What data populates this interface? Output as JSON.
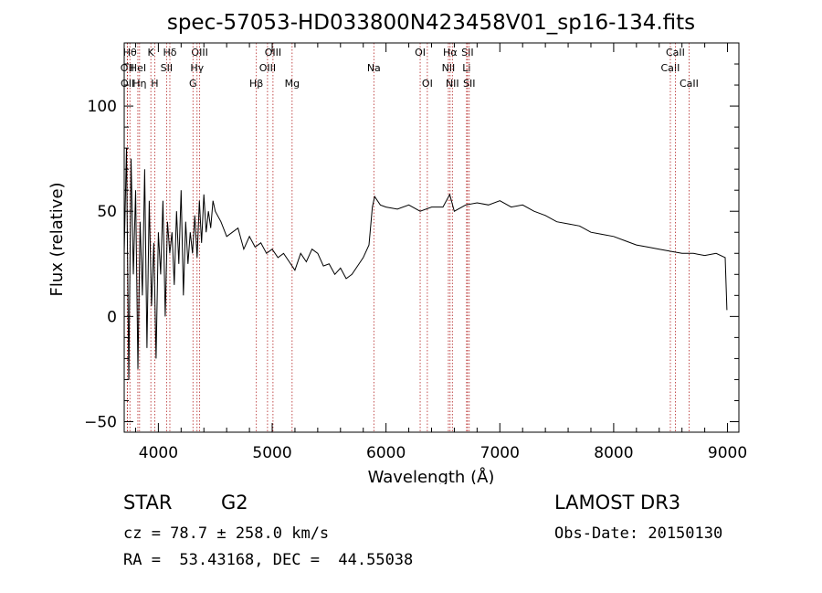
{
  "chart_data": {
    "type": "line",
    "title": "spec-57053-HD033800N423458V01_sp16-134.fits",
    "xlabel": "Wavelength (Å)",
    "ylabel": "Flux (relative)",
    "xlim": [
      3700,
      9100
    ],
    "ylim": [
      -55,
      130
    ],
    "xticks": [
      4000,
      5000,
      6000,
      7000,
      8000,
      9000
    ],
    "yticks": [
      -50,
      0,
      50,
      100
    ],
    "series": [
      {
        "name": "flux",
        "x": [
          3700,
          3720,
          3740,
          3760,
          3780,
          3800,
          3820,
          3840,
          3860,
          3880,
          3900,
          3920,
          3940,
          3960,
          3980,
          4000,
          4020,
          4040,
          4060,
          4080,
          4100,
          4120,
          4140,
          4160,
          4180,
          4200,
          4220,
          4240,
          4260,
          4280,
          4300,
          4320,
          4340,
          4360,
          4380,
          4400,
          4420,
          4440,
          4460,
          4480,
          4500,
          4550,
          4600,
          4650,
          4700,
          4750,
          4800,
          4850,
          4900,
          4950,
          5000,
          5050,
          5100,
          5150,
          5200,
          5250,
          5300,
          5350,
          5400,
          5450,
          5500,
          5550,
          5600,
          5650,
          5700,
          5750,
          5800,
          5850,
          5880,
          5900,
          5950,
          6000,
          6100,
          6200,
          6300,
          6400,
          6500,
          6560,
          6600,
          6700,
          6800,
          6900,
          7000,
          7100,
          7200,
          7300,
          7400,
          7500,
          7600,
          7700,
          7800,
          7900,
          8000,
          8100,
          8200,
          8300,
          8400,
          8500,
          8600,
          8700,
          8800,
          8900,
          8980,
          8995
        ],
        "values": [
          30,
          80,
          -30,
          75,
          20,
          60,
          -25,
          45,
          10,
          70,
          -15,
          55,
          5,
          35,
          -20,
          40,
          20,
          55,
          0,
          45,
          30,
          40,
          15,
          50,
          25,
          60,
          10,
          45,
          25,
          40,
          30,
          48,
          28,
          55,
          35,
          58,
          40,
          50,
          42,
          55,
          50,
          45,
          38,
          40,
          42,
          32,
          38,
          33,
          35,
          30,
          32,
          28,
          30,
          26,
          22,
          30,
          26,
          32,
          30,
          24,
          25,
          20,
          23,
          18,
          20,
          24,
          28,
          34,
          52,
          57,
          53,
          52,
          51,
          53,
          50,
          52,
          52,
          58,
          50,
          53,
          54,
          53,
          55,
          52,
          53,
          50,
          48,
          45,
          44,
          43,
          40,
          39,
          38,
          36,
          34,
          33,
          32,
          31,
          30,
          30,
          29,
          30,
          28,
          3
        ]
      }
    ],
    "lines": [
      {
        "label": "OII",
        "x": 3727,
        "row": 2
      },
      {
        "label": "Hθ",
        "x": 3750,
        "row": 1
      },
      {
        "label": "OII",
        "x": 3729,
        "row": 3
      },
      {
        "label": "HeI",
        "x": 3820,
        "row": 2
      },
      {
        "label": "Hη",
        "x": 3835,
        "row": 3
      },
      {
        "label": "K",
        "x": 3934,
        "row": 1
      },
      {
        "label": "H",
        "x": 3968,
        "row": 3
      },
      {
        "label": "SII",
        "x": 4072,
        "row": 2
      },
      {
        "label": "Hδ",
        "x": 4101,
        "row": 1
      },
      {
        "label": "OIII",
        "x": 4363,
        "row": 1
      },
      {
        "label": "Hγ",
        "x": 4340,
        "row": 2
      },
      {
        "label": "G",
        "x": 4304,
        "row": 3
      },
      {
        "label": "Hβ",
        "x": 4861,
        "row": 3
      },
      {
        "label": "OIII",
        "x": 4959,
        "row": 2
      },
      {
        "label": "OIII",
        "x": 5007,
        "row": 1
      },
      {
        "label": "Mg",
        "x": 5175,
        "row": 3
      },
      {
        "label": "Na",
        "x": 5893,
        "row": 2
      },
      {
        "label": "OI",
        "x": 6300,
        "row": 1
      },
      {
        "label": "OI",
        "x": 6363,
        "row": 3
      },
      {
        "label": "NII",
        "x": 6548,
        "row": 2
      },
      {
        "label": "Hα",
        "x": 6563,
        "row": 1
      },
      {
        "label": "NII",
        "x": 6583,
        "row": 3
      },
      {
        "label": "SII",
        "x": 6716,
        "row": 1
      },
      {
        "label": "Li",
        "x": 6708,
        "row": 2
      },
      {
        "label": "SII",
        "x": 6731,
        "row": 3
      },
      {
        "label": "CaII",
        "x": 8498,
        "row": 2
      },
      {
        "label": "CaII",
        "x": 8542,
        "row": 1
      },
      {
        "label": "CaII",
        "x": 8662,
        "row": 3
      }
    ]
  },
  "info": {
    "object_class": "STAR",
    "subclass": "G2",
    "cz": "cz = 78.7 ± 258.0 km/s",
    "radec": "RA =  53.43168, DEC =  44.55038",
    "survey": "LAMOST DR3",
    "obs_date": "Obs-Date: 20150130"
  },
  "colors": {
    "line_marker": "#b22222",
    "spectrum": "#000000"
  }
}
